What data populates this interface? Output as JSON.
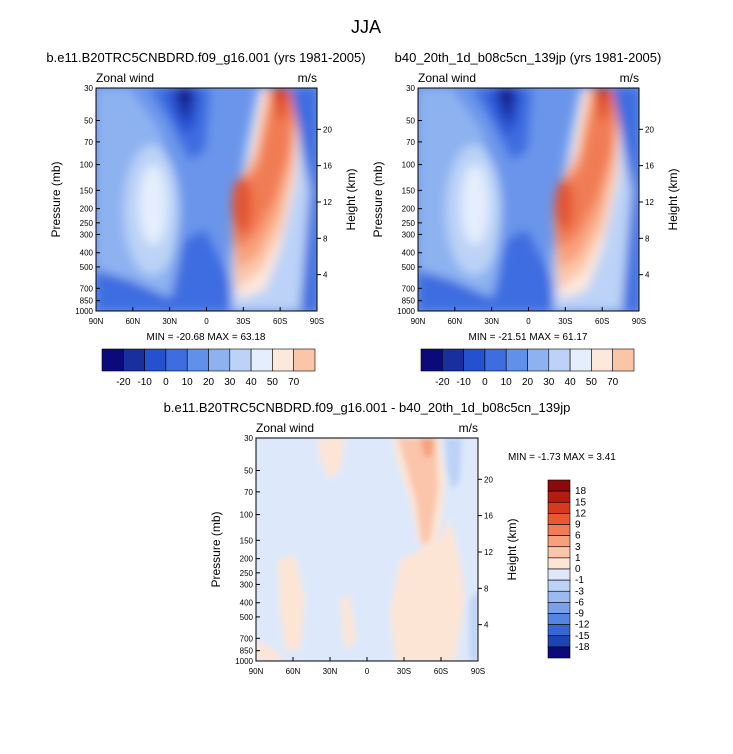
{
  "figure_title": "JJA",
  "chart_data": [
    {
      "type": "heatmap",
      "title": "b.e11.B20TRC5CNBDRD.f09_g16.001 (yrs 1981-2005)",
      "subtitle_left": "Zonal wind",
      "units": "m/s",
      "ylabel": "Pressure (mb)",
      "ylabel_right": "Height (km)",
      "x_ticks": [
        "90N",
        "60N",
        "30N",
        "0",
        "30S",
        "60S",
        "90S"
      ],
      "y_ticks": [
        "30",
        "50",
        "70",
        "100",
        "150",
        "200",
        "250",
        "300",
        "400",
        "500",
        "700",
        "850",
        "1000"
      ],
      "y_ticks_right": [
        "20",
        "16",
        "12",
        "8",
        "4"
      ],
      "stats": "MIN = -20.68  MAX =  63.18",
      "min": -20.68,
      "max": 63.18,
      "colorbar_levels": [
        "-20",
        "-10",
        "0",
        "10",
        "20",
        "30",
        "40",
        "50",
        "70"
      ]
    },
    {
      "type": "heatmap",
      "title": "b40_20th_1d_b08c5cn_139jp (yrs 1981-2005)",
      "subtitle_left": "Zonal wind",
      "units": "m/s",
      "ylabel": "Pressure (mb)",
      "ylabel_right": "Height (km)",
      "x_ticks": [
        "90N",
        "60N",
        "30N",
        "0",
        "30S",
        "60S",
        "90S"
      ],
      "y_ticks": [
        "30",
        "50",
        "70",
        "100",
        "150",
        "200",
        "250",
        "300",
        "400",
        "500",
        "700",
        "850",
        "1000"
      ],
      "y_ticks_right": [
        "20",
        "16",
        "12",
        "8",
        "4"
      ],
      "stats": "MIN = -21.51  MAX =  61.17",
      "min": -21.51,
      "max": 61.17,
      "colorbar_levels": [
        "-20",
        "-10",
        "0",
        "10",
        "20",
        "30",
        "40",
        "50",
        "70"
      ]
    },
    {
      "type": "heatmap",
      "title": "b.e11.B20TRC5CNBDRD.f09_g16.001 - b40_20th_1d_b08c5cn_139jp",
      "subtitle_left": "Zonal wind",
      "units": "m/s",
      "ylabel": "Pressure (mb)",
      "ylabel_right": "Height (km)",
      "x_ticks": [
        "90N",
        "60N",
        "30N",
        "0",
        "30S",
        "60S",
        "90S"
      ],
      "y_ticks": [
        "30",
        "50",
        "70",
        "100",
        "150",
        "200",
        "250",
        "300",
        "400",
        "500",
        "700",
        "850",
        "1000"
      ],
      "y_ticks_right": [
        "20",
        "16",
        "12",
        "8",
        "4"
      ],
      "stats": "MIN = -1.73  MAX =   3.41",
      "min": -1.73,
      "max": 3.41,
      "colorbar_levels": [
        "18",
        "15",
        "12",
        "9",
        "6",
        "3",
        "1",
        "0",
        "-1",
        "-3",
        "-6",
        "-9",
        "-12",
        "-15",
        "-18"
      ]
    }
  ],
  "colors": {
    "abs_scale": [
      "#0a0a7a",
      "#1a2f9e",
      "#2550d0",
      "#3e6de0",
      "#6090ea",
      "#8eb2f0",
      "#bcd3f7",
      "#e4eefc",
      "#fde8dc",
      "#fbc6a8",
      "#f8a07a",
      "#f07b52",
      "#e35530",
      "#c83018",
      "#8c0a0a"
    ],
    "diff_scale": [
      "#8c0a0a",
      "#b41c12",
      "#d63a1e",
      "#e9592f",
      "#f07c55",
      "#f6a07e",
      "#fac5aa",
      "#fde5d6",
      "#dde9fb",
      "#bcd2f6",
      "#9bbaf0",
      "#7aa0ea",
      "#5585e2",
      "#3766d4",
      "#1d45b6",
      "#0a0a7a"
    ]
  }
}
